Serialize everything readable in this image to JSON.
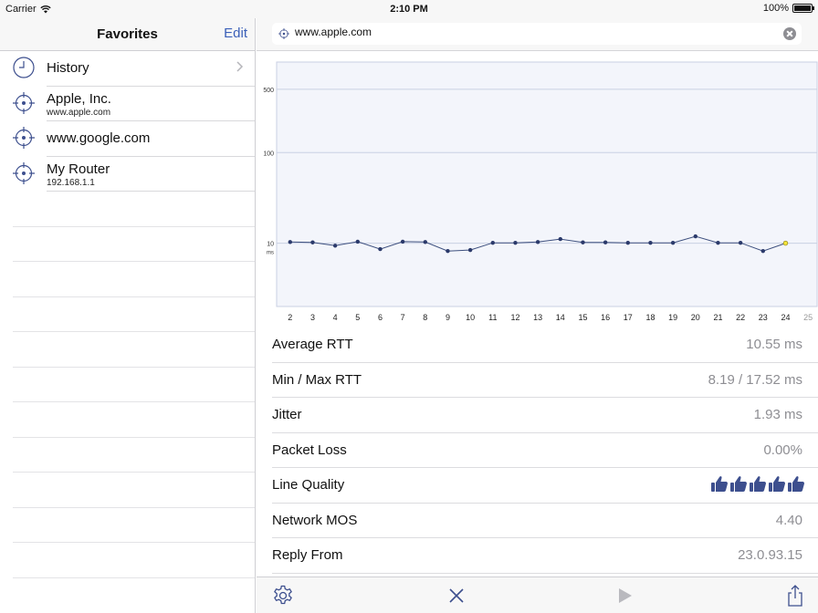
{
  "status": {
    "carrier": "Carrier",
    "time": "2:10 PM",
    "battery": "100%"
  },
  "sidebar": {
    "title": "Favorites",
    "edit_label": "Edit",
    "items": [
      {
        "label": "History",
        "sub": ""
      },
      {
        "label": "Apple, Inc.",
        "sub": "www.apple.com"
      },
      {
        "label": "www.google.com",
        "sub": ""
      },
      {
        "label": "My Router",
        "sub": "192.168.1.1"
      }
    ]
  },
  "url": {
    "value": "www.apple.com"
  },
  "chart_data": {
    "type": "line",
    "x": [
      2,
      3,
      4,
      5,
      6,
      7,
      8,
      9,
      10,
      11,
      12,
      13,
      14,
      15,
      16,
      17,
      18,
      19,
      20,
      21,
      22,
      23,
      24
    ],
    "y": [
      10.3,
      10.2,
      9.4,
      10.4,
      8.6,
      10.4,
      10.3,
      8.2,
      8.4,
      10.1,
      10.1,
      10.3,
      11.1,
      10.2,
      10.2,
      10.1,
      10.1,
      10.1,
      11.9,
      10.1,
      10.1,
      8.2,
      10.0
    ],
    "xticks": [
      "2",
      "3",
      "4",
      "5",
      "6",
      "7",
      "8",
      "9",
      "10",
      "11",
      "12",
      "13",
      "14",
      "15",
      "16",
      "17",
      "18",
      "19",
      "20",
      "21",
      "22",
      "23",
      "24",
      "25"
    ],
    "yticks": [
      "10",
      "100",
      "500"
    ],
    "yunit": "ms",
    "yscale": "log",
    "ylim": [
      2,
      1000
    ],
    "xlim": [
      1.4,
      25.4
    ],
    "grid": "horizontal",
    "line_color": "#3d4f7e",
    "point_color": "#2b3a6b",
    "last_point_color": "#f2e43a"
  },
  "stats": [
    {
      "label": "Average RTT",
      "value": "10.55 ms"
    },
    {
      "label": "Min / Max RTT",
      "value": "8.19 / 17.52 ms"
    },
    {
      "label": "Jitter",
      "value": "1.93 ms"
    },
    {
      "label": "Packet Loss",
      "value": "0.00%"
    },
    {
      "label": "Line Quality",
      "value": "",
      "rating": 5
    },
    {
      "label": "Network MOS",
      "value": "4.40"
    },
    {
      "label": "Reply From",
      "value": "23.0.93.15"
    }
  ],
  "icons": {
    "history": "clock-icon",
    "target": "target-icon",
    "settings": "gear-icon",
    "stop": "close-icon",
    "play": "play-icon",
    "share": "share-icon",
    "quality": "thumbs-up-icon"
  },
  "colors": {
    "accent": "#3a5fb8",
    "icon": "#3d4f8e"
  }
}
